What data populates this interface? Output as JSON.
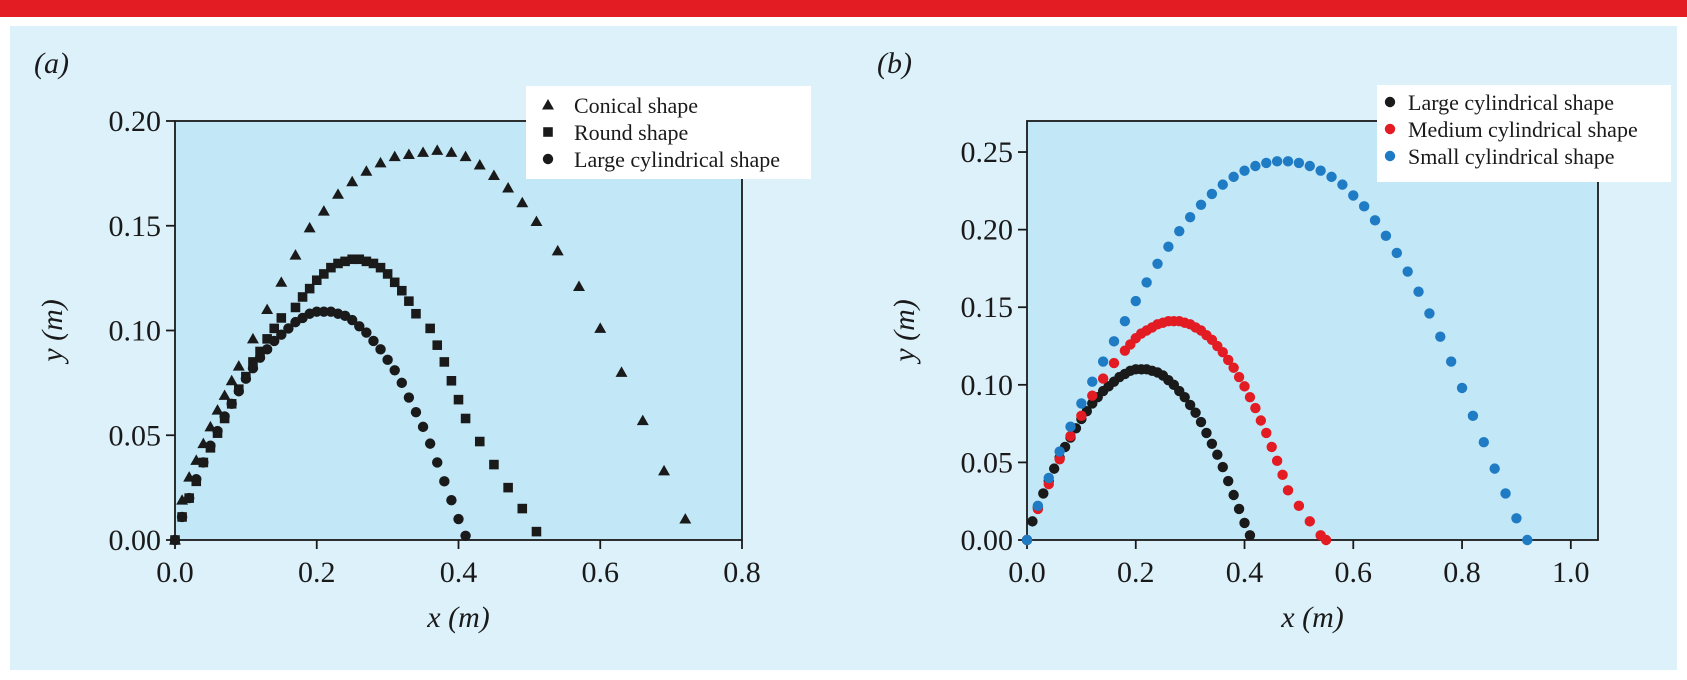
{
  "chart_data": [
    {
      "panel_label": "(a)",
      "type": "scatter",
      "xlabel": "x (m)",
      "ylabel": "y (m)",
      "xlim": [
        0,
        0.8
      ],
      "ylim": [
        0,
        0.2
      ],
      "xticks": [
        "0.0",
        "0.2",
        "0.4",
        "0.6",
        "0.8"
      ],
      "yticks": [
        "0.00",
        "0.05",
        "0.10",
        "0.15",
        "0.20"
      ],
      "legend_position": "top-right",
      "grid": false,
      "series": [
        {
          "name": "Conical shape",
          "marker": "triangle",
          "color": "#1a1a1a",
          "x": [
            0.0,
            0.01,
            0.02,
            0.03,
            0.04,
            0.05,
            0.06,
            0.07,
            0.08,
            0.09,
            0.11,
            0.13,
            0.15,
            0.17,
            0.19,
            0.21,
            0.23,
            0.25,
            0.27,
            0.29,
            0.31,
            0.33,
            0.35,
            0.37,
            0.39,
            0.41,
            0.43,
            0.45,
            0.47,
            0.49,
            0.51,
            0.54,
            0.57,
            0.6,
            0.63,
            0.66,
            0.69,
            0.72
          ],
          "y": [
            0.0,
            0.019,
            0.03,
            0.038,
            0.046,
            0.054,
            0.062,
            0.069,
            0.076,
            0.083,
            0.096,
            0.11,
            0.123,
            0.136,
            0.149,
            0.157,
            0.165,
            0.171,
            0.176,
            0.18,
            0.183,
            0.184,
            0.185,
            0.186,
            0.185,
            0.183,
            0.179,
            0.174,
            0.168,
            0.161,
            0.152,
            0.138,
            0.121,
            0.101,
            0.08,
            0.057,
            0.033,
            0.01
          ]
        },
        {
          "name": "Round shape",
          "marker": "square",
          "color": "#1a1a1a",
          "x": [
            0.0,
            0.01,
            0.02,
            0.03,
            0.04,
            0.05,
            0.06,
            0.07,
            0.08,
            0.09,
            0.1,
            0.11,
            0.12,
            0.13,
            0.14,
            0.15,
            0.17,
            0.18,
            0.19,
            0.2,
            0.21,
            0.22,
            0.23,
            0.24,
            0.25,
            0.26,
            0.27,
            0.28,
            0.29,
            0.3,
            0.31,
            0.32,
            0.33,
            0.34,
            0.36,
            0.37,
            0.38,
            0.39,
            0.4,
            0.41,
            0.43,
            0.45,
            0.47,
            0.49,
            0.51
          ],
          "y": [
            0.0,
            0.011,
            0.02,
            0.028,
            0.037,
            0.044,
            0.051,
            0.058,
            0.065,
            0.072,
            0.078,
            0.085,
            0.09,
            0.096,
            0.101,
            0.106,
            0.111,
            0.116,
            0.12,
            0.124,
            0.127,
            0.13,
            0.132,
            0.133,
            0.134,
            0.134,
            0.133,
            0.132,
            0.13,
            0.127,
            0.123,
            0.119,
            0.114,
            0.108,
            0.101,
            0.093,
            0.085,
            0.076,
            0.067,
            0.058,
            0.047,
            0.036,
            0.025,
            0.015,
            0.004
          ]
        },
        {
          "name": "Large cylindrical shape",
          "marker": "circle",
          "color": "#1a1a1a",
          "x": [
            0.0,
            0.01,
            0.02,
            0.03,
            0.04,
            0.05,
            0.06,
            0.07,
            0.08,
            0.09,
            0.1,
            0.11,
            0.12,
            0.13,
            0.14,
            0.15,
            0.16,
            0.17,
            0.18,
            0.19,
            0.2,
            0.21,
            0.22,
            0.23,
            0.24,
            0.25,
            0.26,
            0.27,
            0.28,
            0.29,
            0.3,
            0.31,
            0.32,
            0.33,
            0.34,
            0.35,
            0.36,
            0.37,
            0.38,
            0.39,
            0.4,
            0.41
          ],
          "y": [
            0.0,
            0.011,
            0.02,
            0.029,
            0.037,
            0.045,
            0.052,
            0.059,
            0.065,
            0.071,
            0.077,
            0.082,
            0.087,
            0.091,
            0.095,
            0.098,
            0.101,
            0.104,
            0.106,
            0.108,
            0.109,
            0.109,
            0.109,
            0.108,
            0.107,
            0.105,
            0.102,
            0.099,
            0.095,
            0.091,
            0.086,
            0.081,
            0.075,
            0.068,
            0.061,
            0.054,
            0.046,
            0.037,
            0.028,
            0.019,
            0.01,
            0.002
          ]
        }
      ]
    },
    {
      "panel_label": "(b)",
      "type": "scatter",
      "xlabel": "x (m)",
      "ylabel": "y (m)",
      "xlim": [
        0,
        1.05
      ],
      "ylim": [
        0,
        0.27
      ],
      "xticks": [
        "0.0",
        "0.2",
        "0.4",
        "0.6",
        "0.8",
        "1.0"
      ],
      "yticks": [
        "0.00",
        "0.05",
        "0.10",
        "0.15",
        "0.20",
        "0.25"
      ],
      "legend_position": "top-right",
      "grid": false,
      "series": [
        {
          "name": "Large cylindrical shape",
          "marker": "circle",
          "color": "#1a1a1a",
          "x": [
            0.0,
            0.01,
            0.02,
            0.03,
            0.04,
            0.05,
            0.06,
            0.07,
            0.08,
            0.09,
            0.1,
            0.11,
            0.12,
            0.13,
            0.14,
            0.15,
            0.16,
            0.17,
            0.18,
            0.19,
            0.2,
            0.21,
            0.22,
            0.23,
            0.24,
            0.25,
            0.26,
            0.27,
            0.28,
            0.29,
            0.3,
            0.31,
            0.32,
            0.33,
            0.34,
            0.35,
            0.36,
            0.37,
            0.38,
            0.39,
            0.4,
            0.41
          ],
          "y": [
            0.0,
            0.012,
            0.021,
            0.03,
            0.038,
            0.046,
            0.053,
            0.06,
            0.066,
            0.072,
            0.078,
            0.083,
            0.088,
            0.092,
            0.096,
            0.099,
            0.102,
            0.105,
            0.107,
            0.109,
            0.11,
            0.11,
            0.11,
            0.109,
            0.108,
            0.106,
            0.103,
            0.1,
            0.096,
            0.092,
            0.087,
            0.082,
            0.076,
            0.069,
            0.062,
            0.055,
            0.047,
            0.038,
            0.029,
            0.02,
            0.011,
            0.003
          ]
        },
        {
          "name": "Medium cylindrical shape",
          "marker": "circle",
          "color": "#e31b23",
          "x": [
            0.0,
            0.02,
            0.04,
            0.06,
            0.08,
            0.1,
            0.12,
            0.14,
            0.16,
            0.18,
            0.19,
            0.2,
            0.21,
            0.22,
            0.23,
            0.24,
            0.25,
            0.26,
            0.27,
            0.28,
            0.29,
            0.3,
            0.31,
            0.32,
            0.33,
            0.34,
            0.35,
            0.36,
            0.37,
            0.38,
            0.39,
            0.4,
            0.41,
            0.42,
            0.43,
            0.44,
            0.45,
            0.46,
            0.47,
            0.48,
            0.5,
            0.52,
            0.54,
            0.55
          ],
          "y": [
            0.0,
            0.02,
            0.036,
            0.052,
            0.067,
            0.08,
            0.093,
            0.104,
            0.114,
            0.122,
            0.126,
            0.13,
            0.133,
            0.135,
            0.137,
            0.139,
            0.14,
            0.141,
            0.141,
            0.141,
            0.14,
            0.139,
            0.137,
            0.135,
            0.132,
            0.129,
            0.125,
            0.121,
            0.116,
            0.111,
            0.105,
            0.099,
            0.092,
            0.085,
            0.077,
            0.069,
            0.06,
            0.051,
            0.042,
            0.032,
            0.022,
            0.012,
            0.003,
            0.0
          ]
        },
        {
          "name": "Small cylindrical shape",
          "marker": "circle",
          "color": "#1f7bc4",
          "x": [
            0.0,
            0.02,
            0.04,
            0.06,
            0.08,
            0.1,
            0.12,
            0.14,
            0.16,
            0.18,
            0.2,
            0.22,
            0.24,
            0.26,
            0.28,
            0.3,
            0.32,
            0.34,
            0.36,
            0.38,
            0.4,
            0.42,
            0.44,
            0.46,
            0.48,
            0.5,
            0.52,
            0.54,
            0.56,
            0.58,
            0.6,
            0.62,
            0.64,
            0.66,
            0.68,
            0.7,
            0.72,
            0.74,
            0.76,
            0.78,
            0.8,
            0.82,
            0.84,
            0.86,
            0.88,
            0.9,
            0.92
          ],
          "y": [
            0.0,
            0.022,
            0.04,
            0.057,
            0.073,
            0.088,
            0.102,
            0.115,
            0.128,
            0.141,
            0.154,
            0.166,
            0.178,
            0.189,
            0.199,
            0.208,
            0.216,
            0.223,
            0.229,
            0.234,
            0.238,
            0.241,
            0.243,
            0.244,
            0.244,
            0.243,
            0.241,
            0.238,
            0.234,
            0.229,
            0.222,
            0.215,
            0.206,
            0.196,
            0.185,
            0.173,
            0.16,
            0.146,
            0.131,
            0.115,
            0.098,
            0.08,
            0.063,
            0.046,
            0.03,
            0.014,
            0.0
          ]
        }
      ]
    }
  ]
}
